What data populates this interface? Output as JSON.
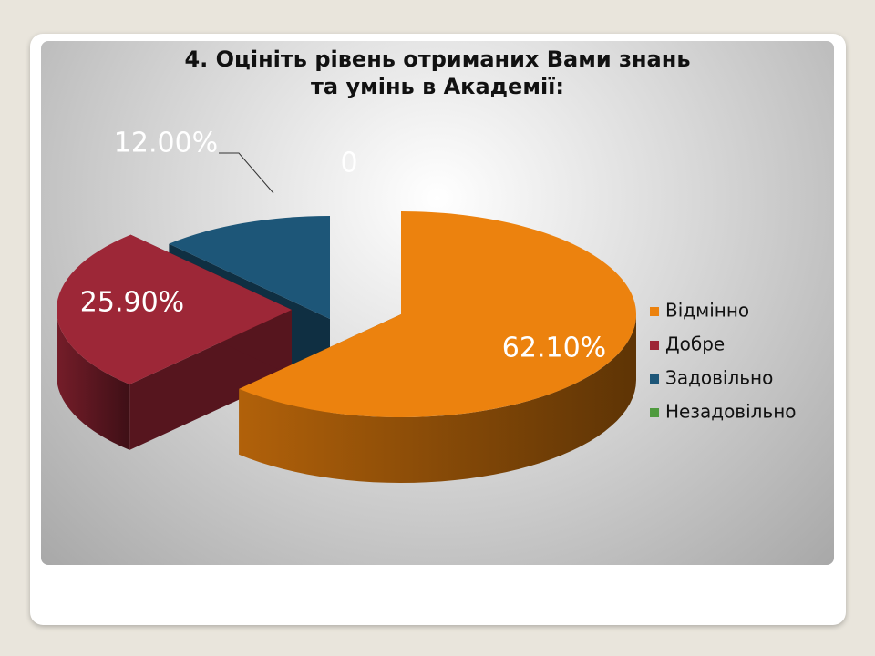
{
  "chart_data": {
    "type": "pie3d",
    "title": "4. Оцініть рівень отриманих Вами знань\nта умінь в Академії:",
    "categories": [
      "Відмінно",
      "Добре",
      "Задовільно",
      "Незадовільно"
    ],
    "values": [
      62.1,
      25.9,
      12.0,
      0
    ],
    "value_labels": [
      "62.10%",
      "25.90%",
      "12.00%",
      "0"
    ],
    "colors": [
      "#ec820e",
      "#9d2737",
      "#1d5678",
      "#4f9a3e"
    ],
    "legend": "right"
  }
}
